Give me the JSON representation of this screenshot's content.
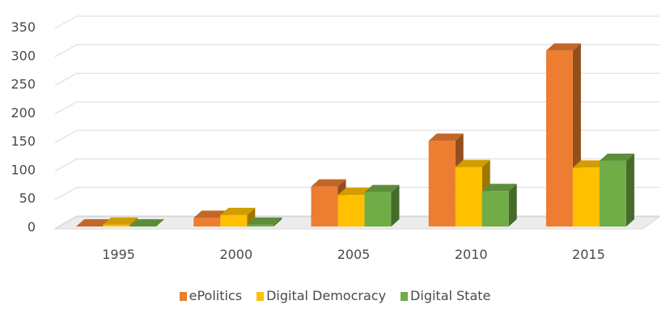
{
  "chart_data": {
    "type": "bar",
    "style": "3d-clustered-column",
    "categories": [
      "1995",
      "2000",
      "2005",
      "2010",
      "2015"
    ],
    "series": [
      {
        "name": "ePolitics",
        "values": [
          0,
          15,
          70,
          150,
          308
        ],
        "color": "#ED7D31"
      },
      {
        "name": "Digital Democracy",
        "values": [
          3,
          20,
          55,
          104,
          103
        ],
        "color": "#FFC000"
      },
      {
        "name": "Digital State",
        "values": [
          0,
          3,
          60,
          62,
          115
        ],
        "color": "#70AD47"
      }
    ],
    "ylim": [
      0,
      350
    ],
    "yticks": [
      "0",
      "50",
      "100",
      "150",
      "200",
      "250",
      "300",
      "350"
    ],
    "title": "",
    "xlabel": "",
    "ylabel": "",
    "grid": true,
    "legend_position": "bottom"
  }
}
